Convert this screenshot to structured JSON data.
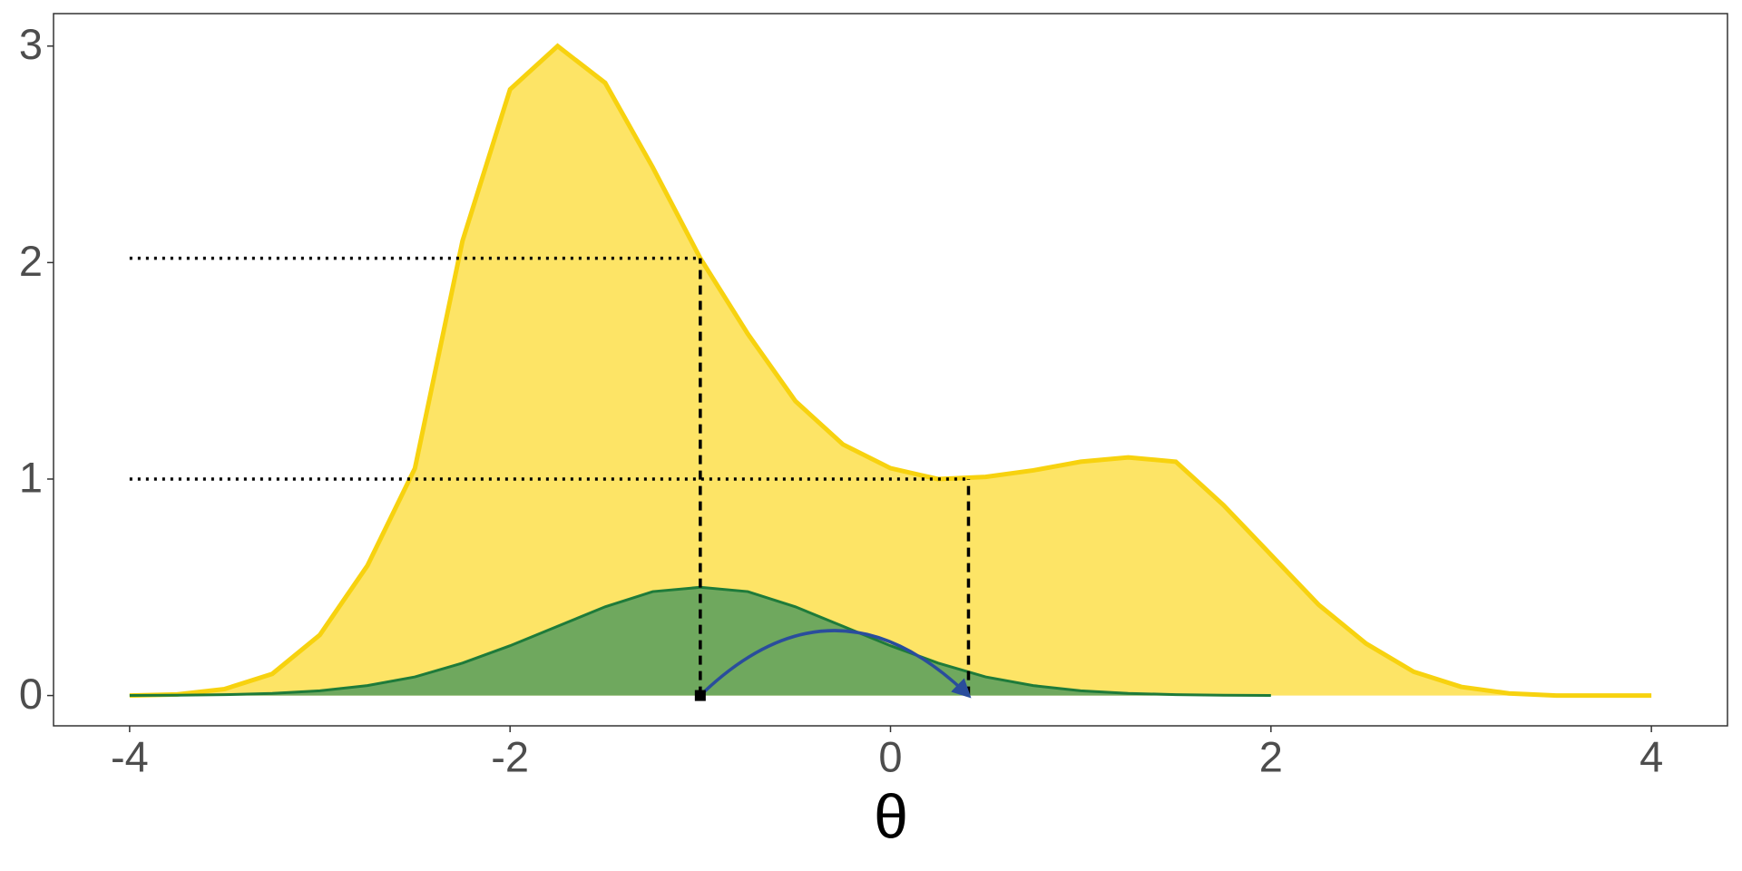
{
  "chart_data": {
    "type": "area",
    "x_label": "θ",
    "xlim": [
      -4.4,
      4.4
    ],
    "ylim": [
      -0.14,
      3.15
    ],
    "xticks": [
      -4,
      -2,
      0,
      2,
      4
    ],
    "yticks": [
      0,
      1,
      2,
      3
    ],
    "grid": false,
    "series": [
      {
        "color": "#f7d20f",
        "fill": "#fde466",
        "x": [
          -4,
          -3.75,
          -3.5,
          -3.25,
          -3,
          -2.75,
          -2.5,
          -2.25,
          -2,
          -1.75,
          -1.5,
          -1.25,
          -1,
          -0.75,
          -0.5,
          -0.25,
          0,
          0.25,
          0.5,
          0.75,
          1,
          1.25,
          1.5,
          1.75,
          2,
          2.25,
          2.5,
          2.75,
          3,
          3.25,
          3.5,
          3.75,
          4
        ],
        "values": [
          0,
          0.005,
          0.03,
          0.1,
          0.28,
          0.6,
          1.05,
          2.1,
          2.8,
          3.0,
          2.83,
          2.44,
          2.02,
          1.67,
          1.36,
          1.16,
          1.05,
          1.0,
          1.01,
          1.04,
          1.08,
          1.1,
          1.08,
          0.88,
          0.65,
          0.42,
          0.24,
          0.11,
          0.04,
          0.01,
          0,
          0,
          0
        ]
      },
      {
        "color": "#1e7b3a",
        "fill": "#6fa85e",
        "x": [
          -4,
          -3.75,
          -3.5,
          -3.25,
          -3,
          -2.75,
          -2.5,
          -2.25,
          -2,
          -1.75,
          -1.5,
          -1.25,
          -1,
          -0.75,
          -0.5,
          -0.25,
          0,
          0.25,
          0.5,
          0.75,
          1,
          1.25,
          1.5,
          1.75,
          2
        ],
        "values": [
          0.0004,
          0.0014,
          0.004,
          0.01,
          0.022,
          0.046,
          0.086,
          0.15,
          0.23,
          0.32,
          0.41,
          0.48,
          0.5,
          0.48,
          0.41,
          0.32,
          0.23,
          0.15,
          0.086,
          0.046,
          0.022,
          0.01,
          0.004,
          0.0014,
          0.0004
        ]
      }
    ],
    "segments": [
      {
        "x0": -4,
        "y0": 2.02,
        "x1": -1,
        "y1": 2.02,
        "style": "dotted"
      },
      {
        "x0": -4,
        "y0": 1.0,
        "x1": 0.41,
        "y1": 1.0,
        "style": "dotted"
      },
      {
        "x0": -1,
        "y0": 0,
        "x1": -1,
        "y1": 2.02,
        "style": "dashed"
      },
      {
        "x0": 0.41,
        "y0": 0,
        "x1": 0.41,
        "y1": 1.0,
        "style": "dashed"
      }
    ],
    "arrow": {
      "x0": -1,
      "y0": 0,
      "x1": 0.41,
      "y1": 0,
      "peak": 0.3,
      "color": "#2a4d9c"
    }
  }
}
